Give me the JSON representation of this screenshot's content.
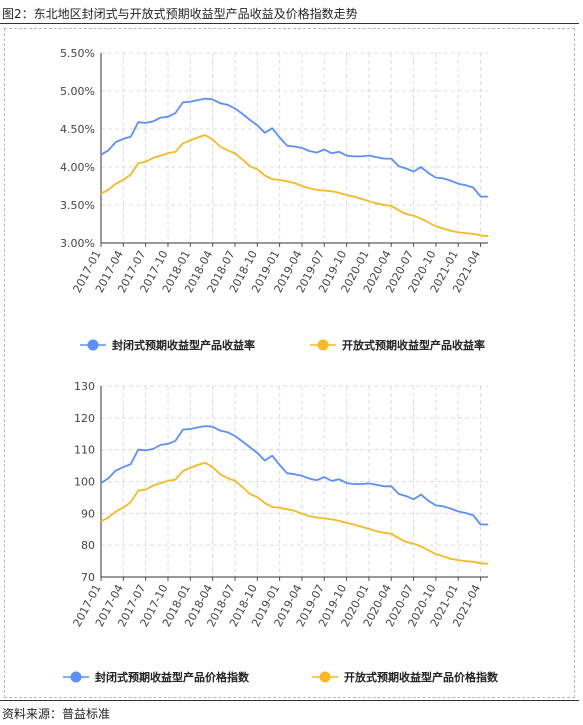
{
  "figure_title": "图2：东北地区封闭式与开放式预期收益型产品收益及价格指数走势",
  "source": "资料来源：普益标准",
  "chart_data": [
    {
      "type": "line",
      "title": "",
      "xlabel": "",
      "ylabel": "",
      "ylim": [
        3.0,
        5.5
      ],
      "yticks": [
        3.0,
        3.5,
        4.0,
        4.5,
        5.0,
        5.5
      ],
      "ytick_labels": [
        "3.00%",
        "3.50%",
        "4.00%",
        "4.50%",
        "5.00%",
        "5.50%"
      ],
      "grid": true,
      "legend": "bottom",
      "x": [
        "2017-01",
        "2017-02",
        "2017-03",
        "2017-04",
        "2017-05",
        "2017-06",
        "2017-07",
        "2017-08",
        "2017-09",
        "2017-10",
        "2017-11",
        "2017-12",
        "2018-01",
        "2018-02",
        "2018-03",
        "2018-04",
        "2018-05",
        "2018-06",
        "2018-07",
        "2018-08",
        "2018-09",
        "2018-10",
        "2018-11",
        "2018-12",
        "2019-01",
        "2019-02",
        "2019-03",
        "2019-04",
        "2019-05",
        "2019-06",
        "2019-07",
        "2019-08",
        "2019-09",
        "2019-10",
        "2019-11",
        "2019-12",
        "2020-01",
        "2020-02",
        "2020-03",
        "2020-04",
        "2020-05",
        "2020-06",
        "2020-07",
        "2020-08",
        "2020-09",
        "2020-10",
        "2020-11",
        "2020-12",
        "2021-01",
        "2021-02",
        "2021-03",
        "2021-04",
        "2021-05"
      ],
      "xtick_labels": [
        "2017-01",
        "2017-04",
        "2017-07",
        "2017-10",
        "2018-01",
        "2018-04",
        "2018-07",
        "2018-10",
        "2019-01",
        "2019-04",
        "2019-07",
        "2019-10",
        "2020-01",
        "2020-04",
        "2020-07",
        "2020-10",
        "2021-01",
        "2021-04"
      ],
      "series": [
        {
          "name": "封闭式预期收益型产品收益率",
          "color": "#5b8ff9",
          "values": [
            4.16,
            4.22,
            4.33,
            4.37,
            4.4,
            4.59,
            4.58,
            4.6,
            4.65,
            4.66,
            4.71,
            4.85,
            4.86,
            4.88,
            4.9,
            4.89,
            4.84,
            4.82,
            4.77,
            4.7,
            4.62,
            4.55,
            4.45,
            4.51,
            4.39,
            4.28,
            4.27,
            4.25,
            4.21,
            4.19,
            4.23,
            4.18,
            4.2,
            4.15,
            4.14,
            4.14,
            4.15,
            4.13,
            4.11,
            4.11,
            4.01,
            3.98,
            3.94,
            4.0,
            3.92,
            3.86,
            3.85,
            3.82,
            3.78,
            3.76,
            3.73,
            3.61,
            3.61
          ]
        },
        {
          "name": "开放式预期收益型产品收益率",
          "color": "#f7b924",
          "values": [
            3.65,
            3.7,
            3.78,
            3.83,
            3.9,
            4.05,
            4.07,
            4.12,
            4.15,
            4.18,
            4.2,
            4.31,
            4.35,
            4.39,
            4.42,
            4.36,
            4.27,
            4.22,
            4.18,
            4.1,
            4.01,
            3.97,
            3.89,
            3.84,
            3.83,
            3.81,
            3.79,
            3.75,
            3.72,
            3.7,
            3.69,
            3.68,
            3.66,
            3.63,
            3.61,
            3.58,
            3.55,
            3.52,
            3.5,
            3.49,
            3.43,
            3.38,
            3.36,
            3.32,
            3.27,
            3.22,
            3.19,
            3.16,
            3.14,
            3.13,
            3.12,
            3.1,
            3.09
          ]
        }
      ]
    },
    {
      "type": "line",
      "title": "",
      "xlabel": "",
      "ylabel": "",
      "ylim": [
        70,
        130
      ],
      "yticks": [
        70,
        80,
        90,
        100,
        110,
        120,
        130
      ],
      "ytick_labels": [
        "70",
        "80",
        "90",
        "100",
        "110",
        "120",
        "130"
      ],
      "grid": true,
      "legend": "bottom",
      "x": [
        "2017-01",
        "2017-02",
        "2017-03",
        "2017-04",
        "2017-05",
        "2017-06",
        "2017-07",
        "2017-08",
        "2017-09",
        "2017-10",
        "2017-11",
        "2017-12",
        "2018-01",
        "2018-02",
        "2018-03",
        "2018-04",
        "2018-05",
        "2018-06",
        "2018-07",
        "2018-08",
        "2018-09",
        "2018-10",
        "2018-11",
        "2018-12",
        "2019-01",
        "2019-02",
        "2019-03",
        "2019-04",
        "2019-05",
        "2019-06",
        "2019-07",
        "2019-08",
        "2019-09",
        "2019-10",
        "2019-11",
        "2019-12",
        "2020-01",
        "2020-02",
        "2020-03",
        "2020-04",
        "2020-05",
        "2020-06",
        "2020-07",
        "2020-08",
        "2020-09",
        "2020-10",
        "2020-11",
        "2020-12",
        "2021-01",
        "2021-02",
        "2021-03",
        "2021-04",
        "2021-05"
      ],
      "xtick_labels": [
        "2017-01",
        "2017-04",
        "2017-07",
        "2017-10",
        "2018-01",
        "2018-04",
        "2018-07",
        "2018-10",
        "2019-01",
        "2019-04",
        "2019-07",
        "2019-10",
        "2020-01",
        "2020-04",
        "2020-07",
        "2020-10",
        "2021-01",
        "2021-04"
      ],
      "series": [
        {
          "name": "封闭式预期收益型产品价格指数",
          "color": "#5b8ff9",
          "values": [
            99.5,
            101.0,
            103.5,
            104.5,
            105.5,
            110.0,
            109.8,
            110.2,
            111.5,
            111.8,
            112.8,
            116.3,
            116.5,
            117.0,
            117.4,
            117.2,
            116.0,
            115.5,
            114.3,
            112.6,
            110.8,
            109.0,
            106.6,
            108.1,
            105.2,
            102.6,
            102.3,
            101.8,
            100.9,
            100.4,
            101.4,
            100.2,
            100.7,
            99.5,
            99.2,
            99.2,
            99.4,
            99.0,
            98.5,
            98.5,
            96.1,
            95.4,
            94.4,
            95.9,
            93.9,
            92.5,
            92.2,
            91.5,
            90.6,
            90.1,
            89.4,
            86.5,
            86.5
          ]
        },
        {
          "name": "开放式预期收益型产品价格指数",
          "color": "#f7b924",
          "values": [
            87.5,
            88.7,
            90.6,
            91.8,
            93.5,
            97.1,
            97.5,
            98.7,
            99.5,
            100.2,
            100.6,
            103.3,
            104.3,
            105.2,
            105.9,
            104.5,
            102.3,
            101.1,
            100.2,
            98.3,
            96.1,
            95.1,
            93.2,
            92.0,
            91.8,
            91.3,
            90.8,
            89.9,
            89.1,
            88.7,
            88.4,
            88.1,
            87.7,
            87.0,
            86.5,
            85.8,
            85.1,
            84.4,
            83.9,
            83.6,
            82.2,
            81.0,
            80.5,
            79.6,
            78.4,
            77.2,
            76.5,
            75.7,
            75.3,
            75.0,
            74.8,
            74.3,
            74.1
          ]
        }
      ]
    }
  ]
}
